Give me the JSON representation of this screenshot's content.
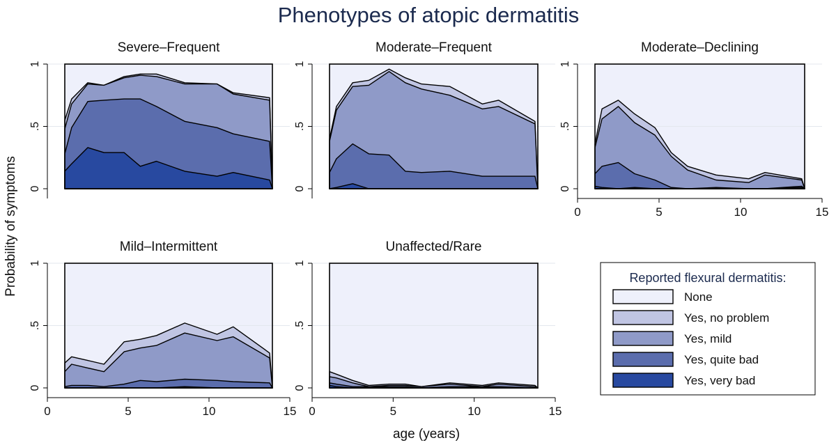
{
  "chart_data": {
    "type": "area",
    "title": "Phenotypes of atopic dermatitis",
    "xlabel": "age (years)",
    "ylabel": "Probability of symptoms",
    "xlim": [
      0,
      15
    ],
    "ylim": [
      0,
      1
    ],
    "x_ticks": [
      "0",
      "5",
      "10",
      "15"
    ],
    "y_ticks": [
      "0",
      ".5",
      "1"
    ],
    "legend": {
      "title": "Reported flexural dermatitis:",
      "placement": "bottom-right",
      "entries": [
        "None",
        "Yes, no problem",
        "Yes, mild",
        "Yes, quite bad",
        "Yes, very bad"
      ]
    },
    "colors": [
      "#eef0fb",
      "#c0c5e3",
      "#8f9ac8",
      "#5b6dad",
      "#2849a0"
    ],
    "ages": [
      0.5,
      1.5,
      2.5,
      3.5,
      4.75,
      5.75,
      6.75,
      8.5,
      10.5,
      11.5,
      13.75
    ],
    "panels": [
      {
        "title": "Severe–Frequent",
        "cum_very_bad": [
          0.14,
          0.2,
          0.33,
          0.29,
          0.29,
          0.18,
          0.22,
          0.14,
          0.1,
          0.13,
          0.07
        ],
        "cum_quite_bad": [
          0.28,
          0.49,
          0.7,
          0.71,
          0.72,
          0.72,
          0.66,
          0.54,
          0.49,
          0.44,
          0.38
        ],
        "cum_mild": [
          0.48,
          0.68,
          0.84,
          0.83,
          0.89,
          0.91,
          0.9,
          0.84,
          0.84,
          0.76,
          0.71
        ],
        "cum_no_problem": [
          0.55,
          0.72,
          0.85,
          0.83,
          0.9,
          0.92,
          0.92,
          0.85,
          0.84,
          0.77,
          0.73
        ]
      },
      {
        "title": "Moderate–Frequent",
        "cum_very_bad": [
          0.0,
          0.01,
          0.04,
          0.0,
          0.0,
          0.0,
          0.0,
          0.0,
          0.0,
          0.0,
          0.0
        ],
        "cum_quite_bad": [
          0.13,
          0.24,
          0.36,
          0.28,
          0.27,
          0.14,
          0.13,
          0.14,
          0.1,
          0.1,
          0.1
        ],
        "cum_mild": [
          0.38,
          0.63,
          0.82,
          0.83,
          0.94,
          0.85,
          0.8,
          0.75,
          0.64,
          0.66,
          0.52
        ],
        "cum_no_problem": [
          0.4,
          0.66,
          0.85,
          0.87,
          0.96,
          0.89,
          0.84,
          0.82,
          0.68,
          0.71,
          0.54
        ]
      },
      {
        "title": "Moderate–Declining",
        "cum_very_bad": [
          0.02,
          0.01,
          0.0,
          0.01,
          0.0,
          0.0,
          0.0,
          0.0,
          0.0,
          0.0,
          0.01
        ],
        "cum_quite_bad": [
          0.12,
          0.18,
          0.21,
          0.12,
          0.07,
          0.01,
          0.0,
          0.01,
          0.0,
          0.0,
          0.02
        ],
        "cum_mild": [
          0.33,
          0.56,
          0.66,
          0.53,
          0.43,
          0.26,
          0.15,
          0.07,
          0.05,
          0.11,
          0.07
        ],
        "cum_no_problem": [
          0.36,
          0.64,
          0.71,
          0.6,
          0.49,
          0.29,
          0.18,
          0.11,
          0.08,
          0.13,
          0.08
        ]
      },
      {
        "title": "Mild–Intermittent",
        "cum_very_bad": [
          0.0,
          0.0,
          0.0,
          0.0,
          0.0,
          0.0,
          0.0,
          0.01,
          0.0,
          0.0,
          0.0
        ],
        "cum_quite_bad": [
          0.01,
          0.02,
          0.02,
          0.01,
          0.03,
          0.06,
          0.05,
          0.07,
          0.06,
          0.05,
          0.04
        ],
        "cum_mild": [
          0.13,
          0.19,
          0.16,
          0.13,
          0.29,
          0.32,
          0.34,
          0.44,
          0.38,
          0.41,
          0.24
        ],
        "cum_no_problem": [
          0.2,
          0.25,
          0.22,
          0.19,
          0.37,
          0.39,
          0.42,
          0.52,
          0.43,
          0.49,
          0.28
        ]
      },
      {
        "title": "Unaffected/Rare",
        "cum_very_bad": [
          0.02,
          0.01,
          0.0,
          0.0,
          0.0,
          0.0,
          0.0,
          0.0,
          0.0,
          0.0,
          0.0
        ],
        "cum_quite_bad": [
          0.04,
          0.03,
          0.01,
          0.01,
          0.01,
          0.01,
          0.0,
          0.01,
          0.01,
          0.01,
          0.0
        ],
        "cum_mild": [
          0.09,
          0.08,
          0.04,
          0.01,
          0.02,
          0.02,
          0.01,
          0.03,
          0.01,
          0.03,
          0.01
        ],
        "cum_no_problem": [
          0.13,
          0.11,
          0.06,
          0.02,
          0.03,
          0.03,
          0.01,
          0.04,
          0.02,
          0.04,
          0.02
        ]
      }
    ]
  }
}
